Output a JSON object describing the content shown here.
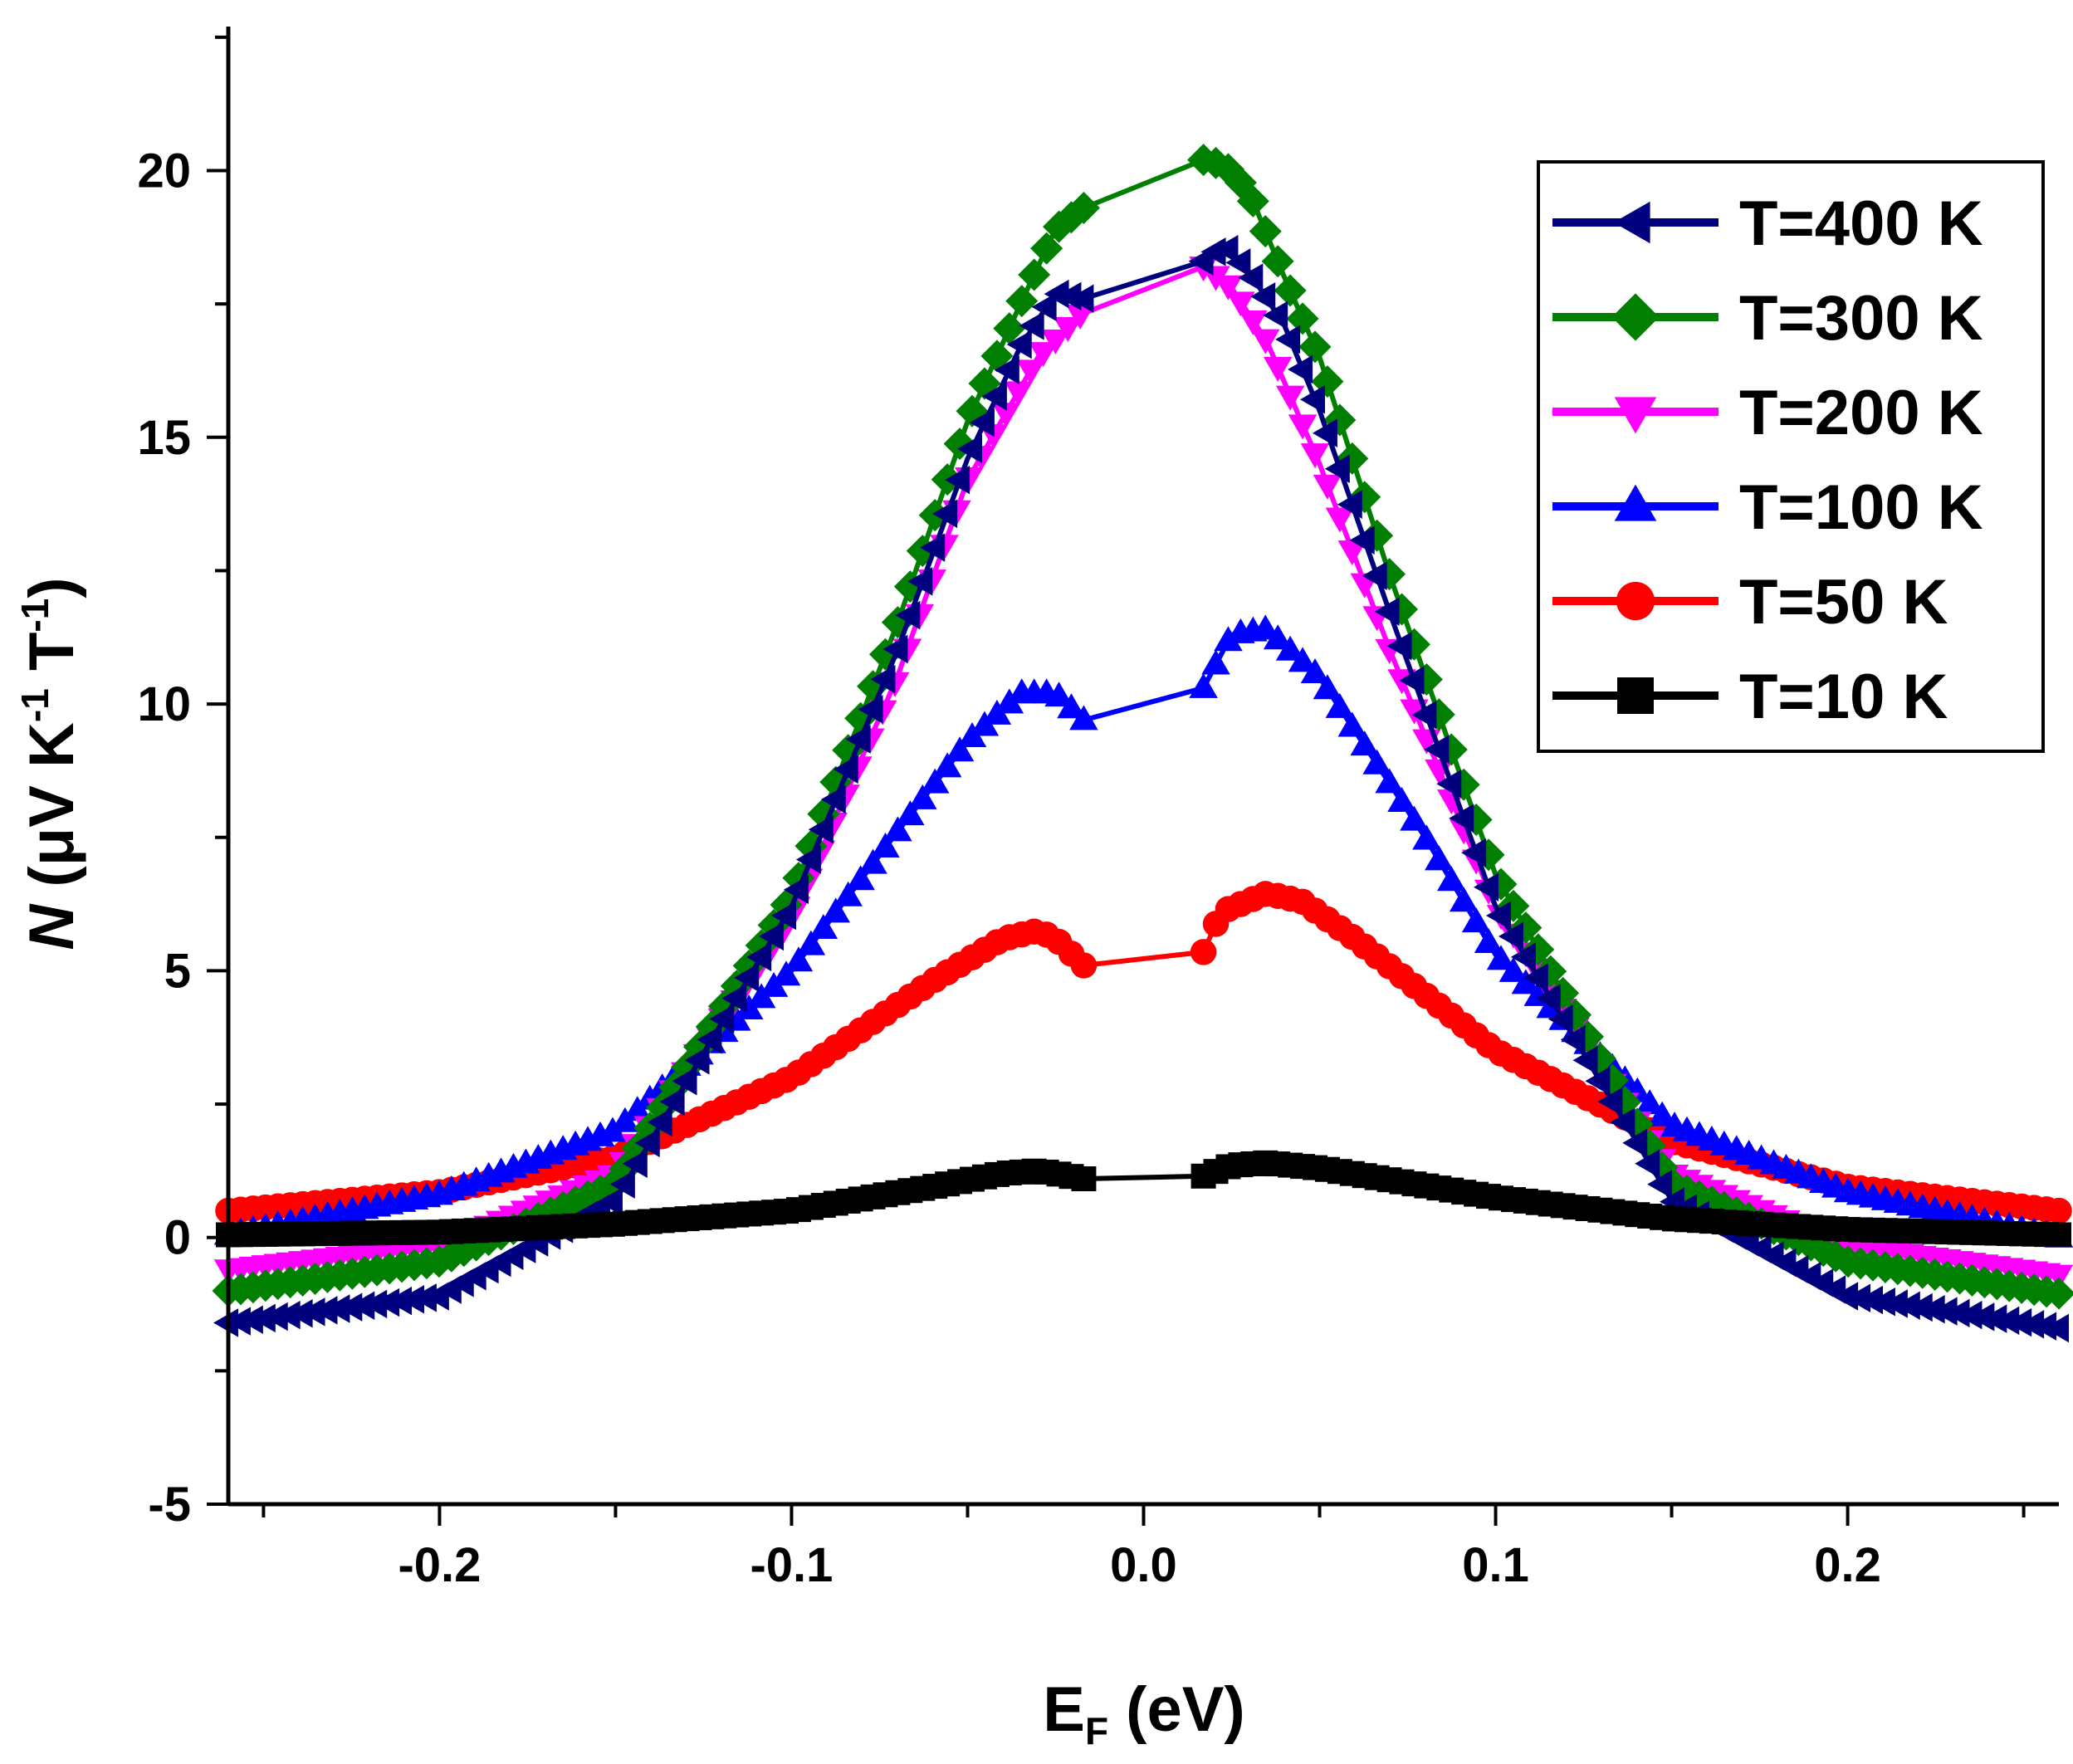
{
  "chart_data": {
    "type": "scatter",
    "title": "",
    "xlabel": {
      "main": "E",
      "sub": "F",
      "unit": " (eV)"
    },
    "ylabel": {
      "var": "N",
      "pre": " (μV K",
      "sup1": "-1",
      "mid": " T",
      "sup2": "-1",
      "post": ")"
    },
    "xlim": [
      -0.26,
      0.26
    ],
    "ylim": [
      -5,
      22.7
    ],
    "xticks": [
      -0.2,
      -0.1,
      0.0,
      0.1,
      0.2
    ],
    "xtick_labels": [
      "-0.2",
      "-0.1",
      "0.0",
      "0.1",
      "0.2"
    ],
    "yticks": [
      -5,
      0,
      5,
      10,
      15,
      20
    ],
    "ytick_labels": [
      "-5",
      "0",
      "5",
      "10",
      "15",
      "20"
    ],
    "legend_position": "top-right",
    "series": [
      {
        "name": "T=10 K",
        "label": "T=10 K",
        "color": "#000000",
        "marker": "square",
        "x": [
          -0.26,
          -0.2,
          -0.15,
          -0.1,
          -0.06,
          -0.04,
          -0.03,
          -0.025,
          -0.017,
          0.017,
          0.025,
          0.035,
          0.05,
          0.1,
          0.15,
          0.2,
          0.26
        ],
        "y": [
          0.05,
          0.1,
          0.25,
          0.5,
          0.95,
          1.2,
          1.25,
          1.2,
          1.1,
          1.15,
          1.35,
          1.4,
          1.3,
          0.75,
          0.35,
          0.15,
          0.05
        ]
      },
      {
        "name": "T=50 K",
        "label": "T=50 K",
        "color": "#ff0000",
        "marker": "circle",
        "x": [
          -0.26,
          -0.2,
          -0.15,
          -0.1,
          -0.06,
          -0.04,
          -0.03,
          -0.025,
          -0.017,
          0.017,
          0.022,
          0.035,
          0.045,
          0.06,
          0.1,
          0.15,
          0.2,
          0.26
        ],
        "y": [
          0.5,
          0.85,
          1.5,
          3.0,
          4.8,
          5.6,
          5.75,
          5.6,
          5.1,
          5.35,
          6.1,
          6.45,
          6.3,
          5.6,
          3.5,
          1.8,
          0.95,
          0.5
        ]
      },
      {
        "name": "T=100 K",
        "label": "T=100 K",
        "color": "#0000ff",
        "marker": "triangle-up",
        "x": [
          -0.26,
          -0.2,
          -0.15,
          -0.1,
          -0.07,
          -0.05,
          -0.035,
          -0.025,
          -0.017,
          0.017,
          0.025,
          0.035,
          0.05,
          0.08,
          0.1,
          0.15,
          0.2,
          0.26
        ],
        "y": [
          0.05,
          0.8,
          2.0,
          5.0,
          7.6,
          9.3,
          10.2,
          10.2,
          9.7,
          10.3,
          11.3,
          11.4,
          10.5,
          7.5,
          5.3,
          2.1,
          0.85,
          0.0
        ]
      },
      {
        "name": "T=200 K",
        "label": "T=200 K",
        "color": "#ff00ff",
        "marker": "triangle-down",
        "x": [
          -0.26,
          -0.2,
          -0.15,
          -0.1,
          -0.07,
          -0.05,
          -0.03,
          -0.018,
          0.017,
          0.025,
          0.035,
          0.05,
          0.07,
          0.1,
          0.15,
          0.2,
          0.26
        ],
        "y": [
          -0.6,
          -0.15,
          1.2,
          6.0,
          10.5,
          14.2,
          16.5,
          17.3,
          18.2,
          17.8,
          16.8,
          14.5,
          11.0,
          6.2,
          1.2,
          -0.15,
          -0.7
        ]
      },
      {
        "name": "T=300 K",
        "label": "T=300 K",
        "color": "#007f00",
        "marker": "diamond",
        "x": [
          -0.26,
          -0.2,
          -0.15,
          -0.1,
          -0.07,
          -0.05,
          -0.035,
          -0.025,
          -0.017,
          0.017,
          0.023,
          0.03,
          0.04,
          0.05,
          0.07,
          0.1,
          0.15,
          0.2,
          0.26
        ],
        "y": [
          -1.0,
          -0.45,
          1.0,
          6.4,
          11.5,
          15.3,
          17.5,
          18.9,
          19.3,
          20.2,
          20.1,
          19.6,
          18.0,
          16.5,
          12.4,
          6.8,
          1.0,
          -0.45,
          -1.05
        ]
      },
      {
        "name": "T=400 K",
        "label": "T=400 K",
        "color": "#00007f",
        "marker": "triangle-left",
        "x": [
          -0.26,
          -0.2,
          -0.15,
          -0.1,
          -0.07,
          -0.05,
          -0.035,
          -0.025,
          -0.017,
          0.017,
          0.023,
          0.03,
          0.04,
          0.05,
          0.07,
          0.1,
          0.15,
          0.2,
          0.26
        ],
        "y": [
          -1.6,
          -1.1,
          0.7,
          6.2,
          11.0,
          14.6,
          16.7,
          17.7,
          17.6,
          18.3,
          18.6,
          18.1,
          17.1,
          15.5,
          11.7,
          6.2,
          0.7,
          -1.1,
          -1.7
        ]
      }
    ]
  }
}
